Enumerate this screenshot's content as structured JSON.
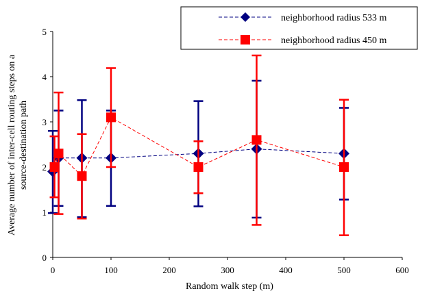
{
  "chart_data": {
    "type": "scatter",
    "title": "",
    "xlabel": "Random walk step (m)",
    "ylabel_lines": [
      "Average number of inter-cell routing steps on a",
      "source-destination path"
    ],
    "xlim": [
      0,
      600
    ],
    "ylim": [
      0,
      5
    ],
    "xticks": [
      "0",
      "100",
      "200",
      "300",
      "400",
      "500",
      "600"
    ],
    "yticks": [
      "0",
      "1",
      "2",
      "3",
      "4",
      "5"
    ],
    "grid": false,
    "legend_position": "top-right",
    "series": [
      {
        "name": "neighborhood radius 533 m",
        "color": "#000080",
        "marker": "diamond",
        "line": "dashed",
        "x": [
          0,
          10,
          50,
          100,
          250,
          350,
          500
        ],
        "y": [
          1.9,
          2.2,
          2.2,
          2.2,
          2.3,
          2.4,
          2.3
        ],
        "err_low": [
          0.98,
          1.14,
          0.89,
          1.14,
          1.13,
          0.88,
          1.28
        ],
        "err_high": [
          2.8,
          3.25,
          3.48,
          3.25,
          3.46,
          3.91,
          3.31
        ]
      },
      {
        "name": "neighborhood radius 450 m",
        "color": "#ff0000",
        "marker": "square",
        "line": "dashed",
        "x": [
          3,
          10,
          50,
          100,
          250,
          350,
          500
        ],
        "y": [
          2.0,
          2.3,
          1.8,
          3.1,
          2.0,
          2.6,
          2.0
        ],
        "err_low": [
          1.33,
          0.96,
          0.86,
          2.0,
          1.42,
          0.72,
          0.49
        ],
        "err_high": [
          2.68,
          3.65,
          2.73,
          4.19,
          2.57,
          4.47,
          3.49
        ]
      }
    ]
  }
}
